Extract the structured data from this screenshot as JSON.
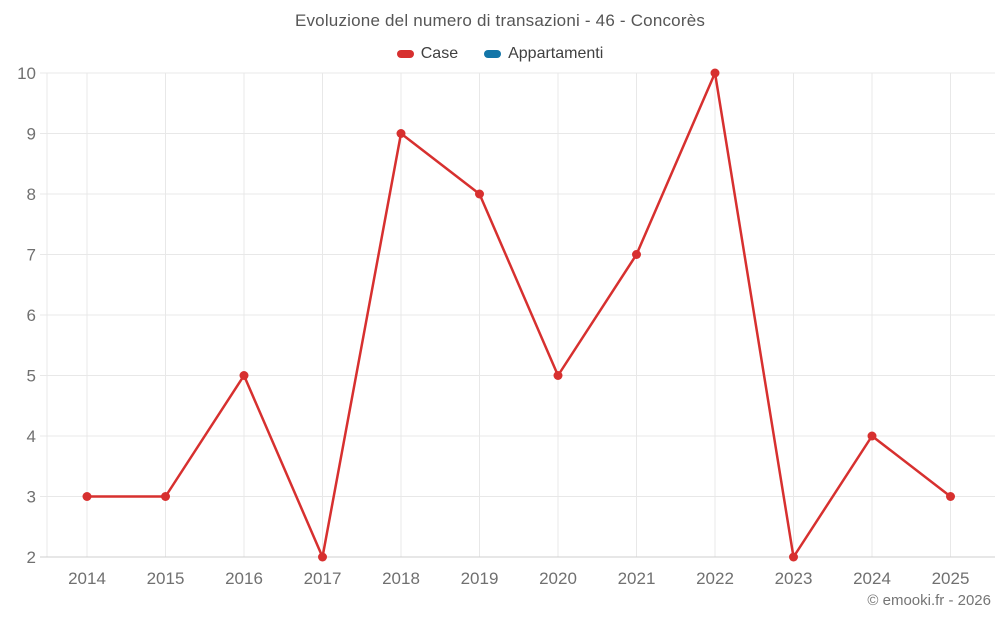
{
  "title": "Evoluzione del numero di transazioni - 46 - Concorès",
  "credit": "© emooki.fr - 2026",
  "legend": {
    "items": [
      {
        "label": "Case",
        "color": "#d7302f"
      },
      {
        "label": "Appartamenti",
        "color": "#1375a8"
      }
    ]
  },
  "colors": {
    "background": "#ffffff",
    "gridline": "#e8e8e8",
    "axis_line": "#cfcfcf",
    "tick_label": "#707070",
    "title_text": "#565656",
    "credit_text": "#757575",
    "case_red": "#d7302f",
    "appartamenti_blue": "#1375a8"
  },
  "chart_data": {
    "type": "line",
    "title": "Evoluzione del numero di transazioni - 46 - Concorès",
    "categories": [
      "2014",
      "2015",
      "2016",
      "2017",
      "2018",
      "2019",
      "2020",
      "2021",
      "2022",
      "2023",
      "2024",
      "2025"
    ],
    "series": [
      {
        "name": "Case",
        "color": "#d7302f",
        "values": [
          3,
          3,
          5,
          2,
          9,
          8,
          5,
          7,
          10,
          2,
          4,
          3
        ]
      },
      {
        "name": "Appartamenti",
        "color": "#1375a8",
        "values": []
      }
    ],
    "xlabel": "",
    "ylabel": "",
    "ylim": [
      2,
      10
    ],
    "yticks": [
      2,
      3,
      4,
      5,
      6,
      7,
      8,
      9,
      10
    ],
    "grid": true,
    "vertical_grid": true,
    "legend_position": "top",
    "marker": "circle"
  }
}
